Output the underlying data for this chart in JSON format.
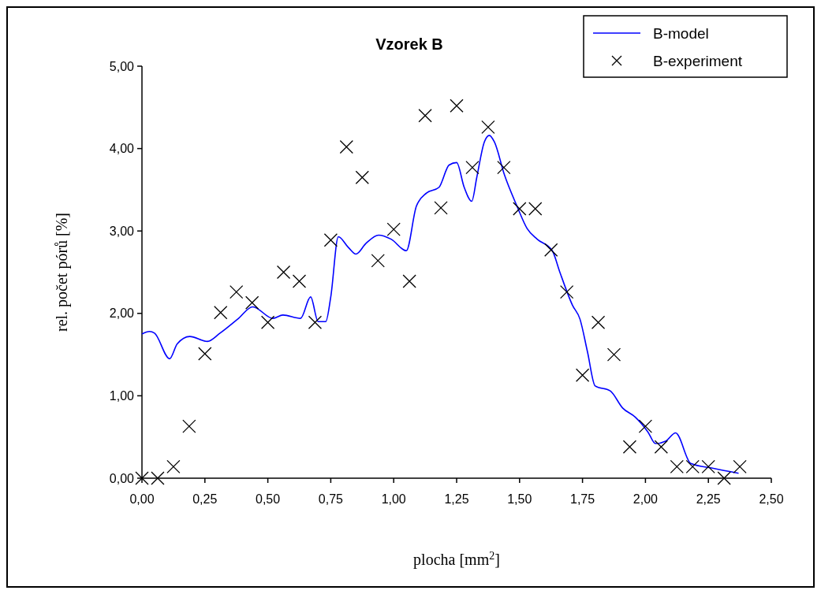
{
  "chart_data": {
    "type": "line",
    "title": "Vzorek B",
    "xlabel": "plocha [mm$^{2}$]",
    "ylabel": "rel. počet pórů [%]",
    "xlim": [
      0,
      2.5
    ],
    "ylim": [
      0,
      5
    ],
    "xticks": [
      {
        "value": 0,
        "label": "0,00"
      },
      {
        "value": 0.25,
        "label": "0,25"
      },
      {
        "value": 0.5,
        "label": "0,50"
      },
      {
        "value": 0.75,
        "label": "0,75"
      },
      {
        "value": 1,
        "label": "1,00"
      },
      {
        "value": 1.25,
        "label": "1,25"
      },
      {
        "value": 1.5,
        "label": "1,50"
      },
      {
        "value": 1.75,
        "label": "1,75"
      },
      {
        "value": 2,
        "label": "2,00"
      },
      {
        "value": 2.25,
        "label": "2,25"
      },
      {
        "value": 2.5,
        "label": "2,50"
      }
    ],
    "yticks": [
      {
        "value": 0,
        "label": "0,00"
      },
      {
        "value": 1,
        "label": "1,00"
      },
      {
        "value": 2,
        "label": "2,00"
      },
      {
        "value": 3,
        "label": "3,00"
      },
      {
        "value": 4,
        "label": "4,00"
      },
      {
        "value": 5,
        "label": "5,00"
      }
    ],
    "grid": false,
    "legend": "top right",
    "series": [
      {
        "name": "B-model",
        "color": "#0000ff",
        "marker": "none",
        "line_style": "solid",
        "x": [
          0,
          0.03,
          0.05,
          0.11,
          0.14,
          0.19,
          0.26,
          0.31,
          0.38,
          0.44,
          0.52,
          0.56,
          0.63,
          0.67,
          0.7,
          0.73,
          0.75,
          0.78,
          0.82,
          0.85,
          0.89,
          0.94,
          0.99,
          1.05,
          1.09,
          1.13,
          1.18,
          1.22,
          1.25,
          1.28,
          1.31,
          1.33,
          1.36,
          1.38,
          1.4,
          1.44,
          1.49,
          1.53,
          1.57,
          1.63,
          1.66,
          1.71,
          1.74,
          1.77,
          1.8,
          1.86,
          1.91,
          1.96,
          2.01,
          2.04,
          2.08,
          2.12,
          2.18,
          2.27,
          2.37
        ],
        "values": [
          1.75,
          1.78,
          1.76,
          1.45,
          1.63,
          1.72,
          1.66,
          1.76,
          1.93,
          2.08,
          1.94,
          1.98,
          1.94,
          2.2,
          1.9,
          1.9,
          2.2,
          2.93,
          2.8,
          2.72,
          2.85,
          2.95,
          2.9,
          2.76,
          3.3,
          3.46,
          3.53,
          3.8,
          3.83,
          3.53,
          3.36,
          3.65,
          4.08,
          4.16,
          4.08,
          3.68,
          3.3,
          3.03,
          2.9,
          2.76,
          2.5,
          2.1,
          1.93,
          1.53,
          1.12,
          1.06,
          0.85,
          0.74,
          0.56,
          0.42,
          0.45,
          0.55,
          0.18,
          0.12,
          0.06
        ]
      },
      {
        "name": "B-experiment",
        "type": "scatter",
        "color": "#000000",
        "marker": "cross",
        "x": [
          0,
          0.0625,
          0.125,
          0.1875,
          0.25,
          0.3125,
          0.375,
          0.4375,
          0.5,
          0.5625,
          0.625,
          0.6875,
          0.75,
          0.8125,
          0.875,
          0.9375,
          1,
          1.0625,
          1.125,
          1.1875,
          1.25,
          1.3125,
          1.375,
          1.4375,
          1.5,
          1.5625,
          1.625,
          1.6875,
          1.75,
          1.8125,
          1.875,
          1.9375,
          2,
          2.0625,
          2.125,
          2.1875,
          2.25,
          2.3125,
          2.375
        ],
        "values": [
          0,
          0,
          0.14,
          0.63,
          1.51,
          2.01,
          2.26,
          2.13,
          1.89,
          2.5,
          2.39,
          1.89,
          2.89,
          4.02,
          3.65,
          2.64,
          3.02,
          2.39,
          4.4,
          3.28,
          4.52,
          3.77,
          4.26,
          3.77,
          3.27,
          3.27,
          2.77,
          2.26,
          1.25,
          1.89,
          1.5,
          0.38,
          0.63,
          0.38,
          0.14,
          0.14,
          0.14,
          0,
          0.14
        ]
      }
    ]
  }
}
